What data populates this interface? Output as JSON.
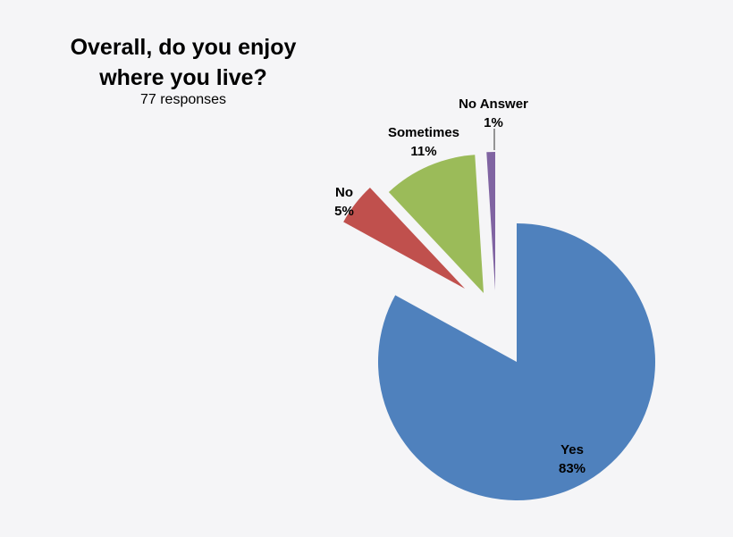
{
  "chart_data": {
    "type": "pie",
    "title": "Overall, do you enjoy where you live?",
    "subtitle": "77 responses",
    "slices": [
      {
        "label": "Yes",
        "percent_label": "83%",
        "value": 83,
        "color": "#4f81bd",
        "exploded": false
      },
      {
        "label": "No",
        "percent_label": "5%",
        "value": 5,
        "color": "#c0504d",
        "exploded": true
      },
      {
        "label": "Sometimes",
        "percent_label": "11%",
        "value": 11,
        "color": "#9bbb59",
        "exploded": true
      },
      {
        "label": "No Answer",
        "percent_label": "1%",
        "value": 1,
        "color": "#8064a2",
        "exploded": true
      }
    ]
  }
}
